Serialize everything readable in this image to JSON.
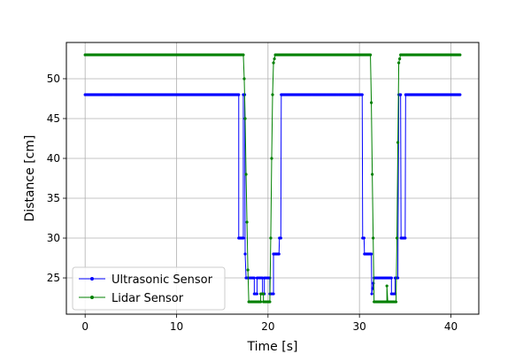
{
  "chart_data": {
    "type": "line",
    "title": "",
    "xlabel": "Time [s]",
    "ylabel": "Distance [cm]",
    "xlim": [
      -2.05,
      43.05
    ],
    "ylim": [
      20.45,
      54.55
    ],
    "xticks": [
      0,
      10,
      20,
      30,
      40
    ],
    "yticks": [
      25,
      30,
      35,
      40,
      45,
      50
    ],
    "grid": true,
    "legend_position": "lower-left",
    "series": [
      {
        "name": "Ultrasonic Sensor",
        "color": "#0000ff",
        "points": [
          [
            0,
            48
          ],
          [
            16.8,
            48
          ],
          [
            16.8,
            30
          ],
          [
            17.3,
            30
          ],
          [
            17.3,
            48
          ],
          [
            17.45,
            48
          ],
          [
            17.5,
            28
          ],
          [
            17.6,
            25
          ],
          [
            18.5,
            25
          ],
          [
            18.5,
            23
          ],
          [
            18.8,
            23
          ],
          [
            18.8,
            25
          ],
          [
            19.4,
            25
          ],
          [
            19.4,
            23
          ],
          [
            19.6,
            23
          ],
          [
            19.6,
            25
          ],
          [
            20.2,
            25
          ],
          [
            20.2,
            23
          ],
          [
            20.6,
            23
          ],
          [
            20.6,
            28
          ],
          [
            21.2,
            28
          ],
          [
            21.25,
            30
          ],
          [
            21.4,
            30
          ],
          [
            21.45,
            48
          ],
          [
            30.3,
            48
          ],
          [
            30.35,
            30
          ],
          [
            30.5,
            30
          ],
          [
            30.55,
            28
          ],
          [
            31.3,
            28
          ],
          [
            31.35,
            23
          ],
          [
            31.6,
            25
          ],
          [
            33.5,
            25
          ],
          [
            33.5,
            23
          ],
          [
            33.9,
            23
          ],
          [
            33.9,
            25
          ],
          [
            34.2,
            25
          ],
          [
            34.3,
            48
          ],
          [
            34.5,
            48
          ],
          [
            34.55,
            30
          ],
          [
            35.0,
            30
          ],
          [
            35.05,
            48
          ],
          [
            41,
            48
          ]
        ]
      },
      {
        "name": "Lidar Sensor",
        "color": "#008000",
        "points": [
          [
            0,
            53
          ],
          [
            17.3,
            53
          ],
          [
            17.4,
            50
          ],
          [
            17.5,
            45
          ],
          [
            17.6,
            38
          ],
          [
            17.7,
            32
          ],
          [
            17.8,
            26
          ],
          [
            17.9,
            22
          ],
          [
            19.2,
            22
          ],
          [
            19.2,
            23
          ],
          [
            19.5,
            23
          ],
          [
            19.5,
            22
          ],
          [
            20.2,
            22
          ],
          [
            20.3,
            30
          ],
          [
            20.4,
            40
          ],
          [
            20.5,
            48
          ],
          [
            20.6,
            52
          ],
          [
            20.8,
            53
          ],
          [
            31.2,
            53
          ],
          [
            31.3,
            47
          ],
          [
            31.4,
            38
          ],
          [
            31.5,
            30
          ],
          [
            31.6,
            22
          ],
          [
            33.0,
            22
          ],
          [
            33.0,
            24
          ],
          [
            33.1,
            22
          ],
          [
            34.0,
            22
          ],
          [
            34.1,
            30
          ],
          [
            34.2,
            42
          ],
          [
            34.3,
            52
          ],
          [
            34.5,
            53
          ],
          [
            41,
            53
          ]
        ]
      }
    ]
  }
}
